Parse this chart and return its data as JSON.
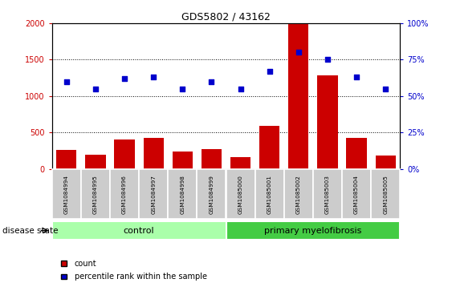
{
  "title": "GDS5802 / 43162",
  "samples": [
    "GSM1084994",
    "GSM1084995",
    "GSM1084996",
    "GSM1084997",
    "GSM1084998",
    "GSM1084999",
    "GSM1085000",
    "GSM1085001",
    "GSM1085002",
    "GSM1085003",
    "GSM1085004",
    "GSM1085005"
  ],
  "counts": [
    260,
    195,
    400,
    420,
    235,
    270,
    165,
    590,
    1990,
    1280,
    420,
    180
  ],
  "percentile_ranks": [
    60,
    55,
    62,
    63,
    55,
    60,
    55,
    67,
    80,
    75,
    63,
    55
  ],
  "left_ylim": [
    0,
    2000
  ],
  "right_ylim": [
    0,
    100
  ],
  "left_yticks": [
    0,
    500,
    1000,
    1500,
    2000
  ],
  "right_yticks": [
    0,
    25,
    50,
    75,
    100
  ],
  "left_yticklabels": [
    "0",
    "500",
    "1000",
    "1500",
    "2000"
  ],
  "right_yticklabels": [
    "0%",
    "25%",
    "50%",
    "75%",
    "100%"
  ],
  "bar_color": "#cc0000",
  "dot_color": "#0000cc",
  "control_color": "#aaffaa",
  "myelofibrosis_color": "#44cc44",
  "control_label": "control",
  "myelofibrosis_label": "primary myelofibrosis",
  "disease_state_label": "disease state",
  "control_count": 6,
  "legend_count_label": "count",
  "legend_percentile_label": "percentile rank within the sample",
  "tick_color_left": "#cc0000",
  "tick_color_right": "#0000cc",
  "sample_bg_color": "#cccccc"
}
